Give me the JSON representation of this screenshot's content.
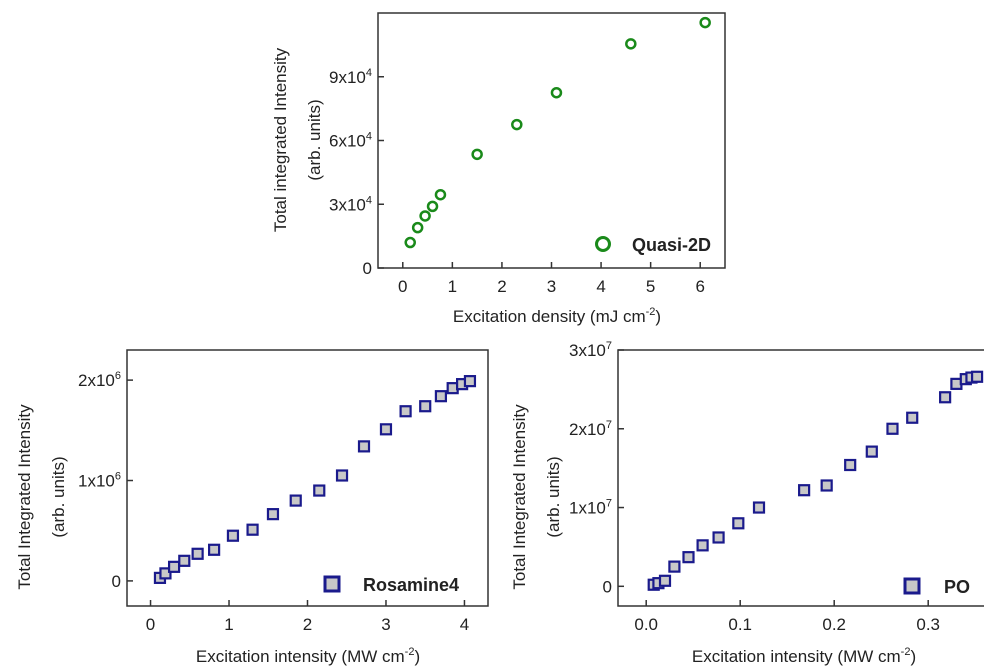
{
  "chart_data": [
    {
      "type": "scatter",
      "xlabel": "Excitation density (mJ cm",
      "xlabel_sup": "-2",
      "xlabel_tail": ")",
      "ylabel_line1": "Total integrated Intensity",
      "ylabel_line2": "(arb. units)",
      "xlim": [
        -0.5,
        6.5
      ],
      "ylim": [
        0,
        120000
      ],
      "xticks": [
        0,
        1,
        2,
        3,
        4,
        5,
        6
      ],
      "xtick_labels": [
        "0",
        "1",
        "2",
        "3",
        "4",
        "5",
        "6"
      ],
      "yticks": [
        0,
        30000,
        60000,
        90000
      ],
      "ytick_labels": [
        {
          "base": "0",
          "exp": ""
        },
        {
          "base": "3x10",
          "exp": "4"
        },
        {
          "base": "6x10",
          "exp": "4"
        },
        {
          "base": "9x10",
          "exp": "4"
        }
      ],
      "grid": false,
      "legend_position": "bottom-right",
      "marker": "circle",
      "color": "#1a8a1a",
      "series": [
        {
          "name": "Quasi-2D",
          "x": [
            0.15,
            0.3,
            0.45,
            0.6,
            0.76,
            1.5,
            2.3,
            3.1,
            4.6,
            6.1
          ],
          "y": [
            12000,
            19000,
            24500,
            29000,
            34500,
            53500,
            67500,
            82500,
            105500,
            115500
          ]
        }
      ]
    },
    {
      "type": "scatter",
      "xlabel": "Excitation intensity (MW cm",
      "xlabel_sup": "-2",
      "xlabel_tail": ")",
      "ylabel_line1": "Total Integrated Intensity",
      "ylabel_line2": "(arb. units)",
      "xlim": [
        -0.3,
        4.3
      ],
      "ylim": [
        -250000,
        2300000
      ],
      "xticks": [
        0,
        1,
        2,
        3,
        4
      ],
      "xtick_labels": [
        "0",
        "1",
        "2",
        "3",
        "4"
      ],
      "yticks": [
        0,
        1000000,
        2000000
      ],
      "ytick_labels": [
        {
          "base": "0",
          "exp": ""
        },
        {
          "base": "1x10",
          "exp": "6"
        },
        {
          "base": "2x10",
          "exp": "6"
        }
      ],
      "grid": false,
      "legend_position": "bottom-right",
      "marker": "square",
      "color": "#1a1a8c",
      "series": [
        {
          "name": "Rosamine4",
          "x": [
            0.12,
            0.19,
            0.3,
            0.43,
            0.6,
            0.81,
            1.05,
            1.3,
            1.56,
            1.85,
            2.15,
            2.44,
            2.72,
            3.0,
            3.25,
            3.5,
            3.7,
            3.85,
            3.97,
            4.07
          ],
          "y": [
            30000,
            75000,
            140000,
            200000,
            270000,
            310000,
            450000,
            510000,
            665000,
            800000,
            900000,
            1050000,
            1340000,
            1510000,
            1690000,
            1740000,
            1840000,
            1920000,
            1960000,
            1990000
          ]
        }
      ]
    },
    {
      "type": "scatter",
      "xlabel": "Excitation intensity (MW cm",
      "xlabel_sup": "-2",
      "xlabel_tail": ")",
      "ylabel_line1": "Total Integrated Intensity",
      "ylabel_line2": "(arb. units)",
      "xlim": [
        -0.03,
        0.37
      ],
      "ylim": [
        -2500000,
        30000000
      ],
      "xticks": [
        0,
        0.1,
        0.2,
        0.3
      ],
      "xtick_labels": [
        "0.0",
        "0.1",
        "0.2",
        "0.3"
      ],
      "yticks": [
        0,
        10000000,
        20000000,
        30000000
      ],
      "ytick_labels": [
        {
          "base": "0",
          "exp": ""
        },
        {
          "base": "1x10",
          "exp": "7"
        },
        {
          "base": "2x10",
          "exp": "7"
        },
        {
          "base": "3x10",
          "exp": "7"
        }
      ],
      "grid": false,
      "legend_position": "bottom-right",
      "marker": "square",
      "color": "#1a1a8c",
      "series": [
        {
          "name": "PO",
          "x": [
            0.008,
            0.013,
            0.02,
            0.03,
            0.045,
            0.06,
            0.077,
            0.098,
            0.12,
            0.168,
            0.192,
            0.217,
            0.24,
            0.262,
            0.283,
            0.318,
            0.33,
            0.34,
            0.346,
            0.352
          ],
          "y": [
            200000,
            400000,
            700000,
            2500000,
            3700000,
            5200000,
            6200000,
            8000000,
            10000000,
            12200000,
            12800000,
            15400000,
            17100000,
            20000000,
            21400000,
            24000000,
            25700000,
            26300000,
            26500000,
            26600000
          ]
        }
      ]
    }
  ]
}
